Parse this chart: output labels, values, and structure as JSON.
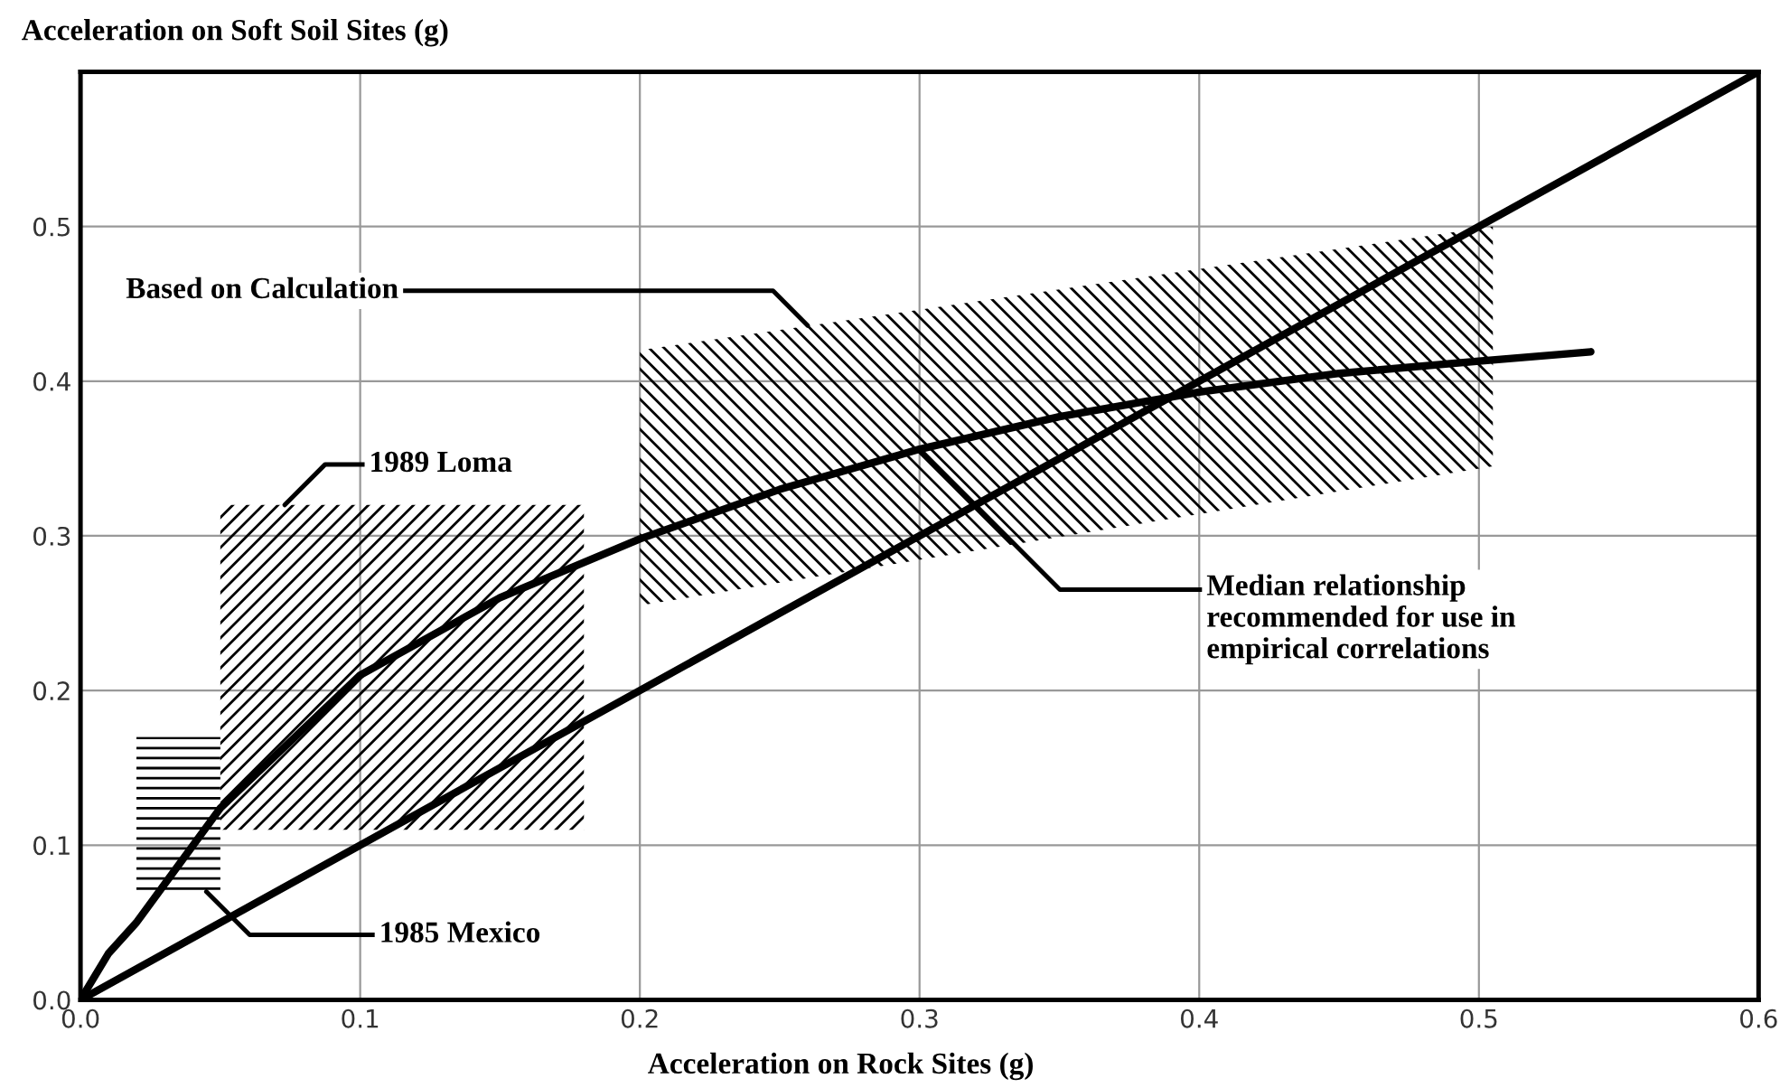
{
  "chart_data": {
    "type": "line",
    "ylabel": "Acceleration on Soft Soil Sites (g)",
    "xlabel": "Acceleration on Rock Sites (g)",
    "xlim": [
      0,
      0.6
    ],
    "ylim": [
      0,
      0.6
    ],
    "xticks": [
      "0.0",
      0.1,
      0.2,
      0.3,
      0.4,
      0.5,
      0.6
    ],
    "yticks": [
      "0.0",
      0.1,
      0.2,
      0.3,
      0.4,
      0.5
    ],
    "grid": true,
    "series": [
      {
        "color": "#000000",
        "x": [
          0.05,
          0.18
        ],
        "values": [
          null,
          null
        ],
        "lower": [
          0.11,
          0.11
        ],
        "upper": [
          0.32,
          0.32
        ]
      },
      {
        "color": "#000000",
        "x": [
          0.02,
          0.05
        ],
        "values": [
          null,
          null
        ],
        "lower": [
          0.07,
          0.07
        ],
        "upper": [
          0.17,
          0.17
        ]
      },
      {
        "color": "#000000",
        "x": [
          0.2,
          0.505
        ],
        "values": [
          null,
          null
        ],
        "lower": [
          0.255,
          0.345
        ],
        "upper": [
          0.42,
          0.5
        ]
      },
      {
        "color": "#000000",
        "x": [
          0,
          0.6
        ],
        "values": [
          0,
          0.6
        ]
      },
      {
        "color": "#000000",
        "x": [
          0,
          0.01,
          0.02,
          0.05,
          0.1,
          0.15,
          0.2,
          0.25,
          0.3,
          0.35,
          0.4,
          0.45,
          0.5,
          0.54
        ],
        "values": [
          0,
          0.03,
          0.05,
          0.124,
          0.21,
          0.26,
          0.298,
          0.33,
          0.356,
          0.377,
          0.393,
          0.405,
          0.413,
          0.419
        ]
      }
    ],
    "annotations": [
      {
        "text": "Based on Calculation",
        "x": 0.26,
        "y": 0.436
      },
      {
        "text": "1989 Loma",
        "x": 0.073,
        "y": 0.32
      },
      {
        "text": "1985 Mexico",
        "x": 0.045,
        "y": 0.07
      },
      {
        "text": "Median relationship\nrecommended for use in\nempirical correlations",
        "x": 0.3,
        "y": 0.356
      }
    ]
  }
}
